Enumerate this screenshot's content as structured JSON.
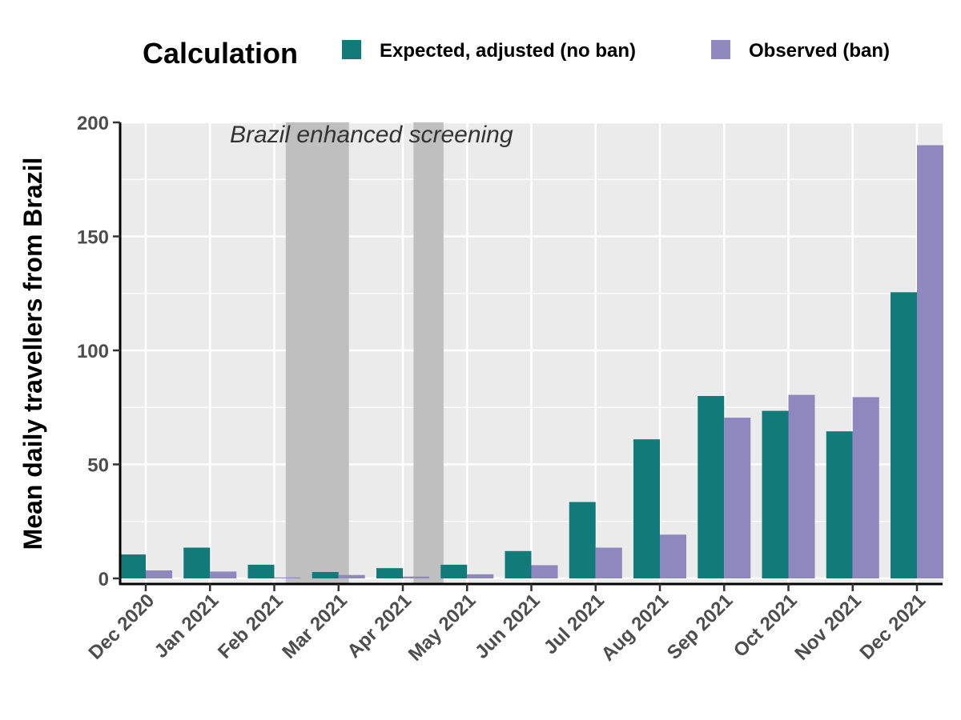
{
  "chart_data": {
    "type": "bar",
    "title": "",
    "xlabel": "",
    "ylabel": "Mean daily travellers from Brazil",
    "ylim": [
      0,
      200
    ],
    "yticks": [
      0,
      50,
      100,
      150,
      200
    ],
    "grid": true,
    "legend": {
      "title": "Calculation",
      "position": "top"
    },
    "categories": [
      "Dec 2020",
      "Jan 2021",
      "Feb 2021",
      "Mar 2021",
      "Apr 2021",
      "May 2021",
      "Jun 2021",
      "Jul 2021",
      "Aug 2021",
      "Sep 2021",
      "Oct 2021",
      "Nov 2021",
      "Dec 2021"
    ],
    "series": [
      {
        "name": "Expected, adjusted (no ban)",
        "color": "#127a78",
        "values": [
          10.5,
          13.5,
          6,
          2.8,
          4.5,
          6,
          12,
          33.5,
          61,
          80,
          73.5,
          64.5,
          125.5
        ]
      },
      {
        "name": "Observed (ban)",
        "color": "#8e88bf",
        "values": [
          3.5,
          3,
          0.4,
          1.5,
          0.8,
          1.8,
          5.8,
          13.5,
          19.2,
          70.5,
          80.5,
          79.5,
          190
        ]
      }
    ],
    "shaded_periods": [
      {
        "label": "Brazil enhanced screening",
        "start": "2021-02-06",
        "end": "2021-03-06"
      },
      {
        "start": "2021-04-06",
        "end": "2021-04-20"
      }
    ]
  }
}
